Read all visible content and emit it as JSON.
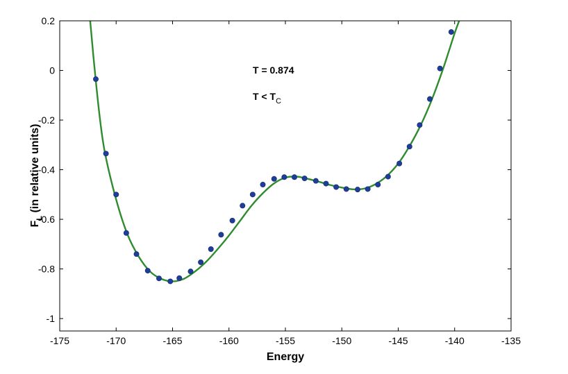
{
  "chart_data": {
    "type": "scatter",
    "xlabel": "Energy",
    "ylabel": {
      "main": "F",
      "sub": "L",
      "rest": " (in relative units)"
    },
    "xlim": [
      -175,
      -135
    ],
    "ylim": [
      -1.05,
      0.2
    ],
    "xticks": [
      "-175",
      "-170",
      "-165",
      "-160",
      "-155",
      "-150",
      "-145",
      "-140",
      "-135"
    ],
    "yticks": [
      "0.2",
      "0",
      "-0.2",
      "-0.4",
      "-0.6",
      "-0.8",
      "-1"
    ],
    "grid": false,
    "annotations": {
      "temperature": "T = 0.874",
      "relation_main": "T < T",
      "relation_sub": "C"
    },
    "colors": {
      "fit_line": "#2e8b2e",
      "points": "#1f3d99"
    },
    "fit_curve": {
      "x": [
        -172.3,
        -172.0,
        -171.5,
        -171.0,
        -170.0,
        -169.0,
        -168.0,
        -167.0,
        -166.0,
        -165.0,
        -164.0,
        -163.0,
        -162.0,
        -161.0,
        -160.0,
        -159.0,
        -158.0,
        -157.0,
        -156.0,
        -155.0,
        -154.0,
        -153.0,
        -152.0,
        -151.0,
        -150.0,
        -149.0,
        -148.0,
        -147.0,
        -146.0,
        -145.0,
        -144.0,
        -143.0,
        -142.0,
        -141.0,
        -140.0,
        -139.6
      ],
      "y": [
        0.2,
        0.05,
        -0.17,
        -0.33,
        -0.52,
        -0.66,
        -0.75,
        -0.81,
        -0.84,
        -0.85,
        -0.84,
        -0.81,
        -0.77,
        -0.72,
        -0.665,
        -0.605,
        -0.545,
        -0.495,
        -0.455,
        -0.432,
        -0.428,
        -0.437,
        -0.449,
        -0.462,
        -0.472,
        -0.479,
        -0.476,
        -0.458,
        -0.425,
        -0.375,
        -0.305,
        -0.22,
        -0.115,
        0.01,
        0.15,
        0.2
      ]
    },
    "points": {
      "x": [
        -171.8,
        -170.9,
        -170.0,
        -169.1,
        -168.2,
        -167.2,
        -166.2,
        -165.2,
        -164.4,
        -163.4,
        -162.5,
        -161.6,
        -160.7,
        -159.7,
        -158.8,
        -157.9,
        -157.0,
        -156.0,
        -155.1,
        -154.2,
        -153.3,
        -152.3,
        -151.4,
        -150.5,
        -149.6,
        -148.6,
        -147.7,
        -146.8,
        -145.9,
        -144.9,
        -144.0,
        -143.1,
        -142.2,
        -141.3,
        -140.3
      ],
      "y": [
        -0.035,
        -0.335,
        -0.5,
        -0.655,
        -0.74,
        -0.807,
        -0.838,
        -0.85,
        -0.837,
        -0.81,
        -0.773,
        -0.72,
        -0.662,
        -0.605,
        -0.545,
        -0.5,
        -0.46,
        -0.437,
        -0.43,
        -0.43,
        -0.435,
        -0.445,
        -0.456,
        -0.47,
        -0.478,
        -0.48,
        -0.478,
        -0.46,
        -0.428,
        -0.375,
        -0.307,
        -0.22,
        -0.115,
        0.008,
        0.155
      ]
    }
  }
}
